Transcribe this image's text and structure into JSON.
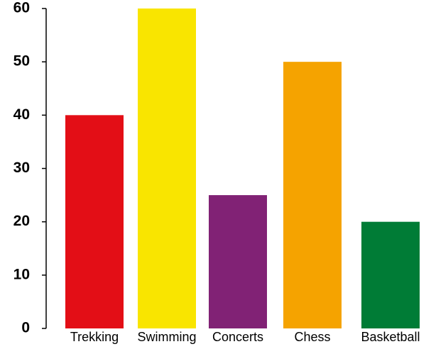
{
  "chart_data": {
    "type": "bar",
    "categories": [
      "Trekking",
      "Swimming",
      "Concerts",
      "Chess",
      "Basketball"
    ],
    "values": [
      40,
      60,
      25,
      50,
      20
    ],
    "colors": [
      "#e30e16",
      "#f9e500",
      "#812275",
      "#f5a300",
      "#007c36"
    ],
    "ylim": [
      0,
      60
    ],
    "yticks": [
      0,
      10,
      20,
      30,
      40,
      50,
      60
    ],
    "title": "",
    "xlabel": "",
    "ylabel": "",
    "grid": false,
    "legend": "none"
  }
}
